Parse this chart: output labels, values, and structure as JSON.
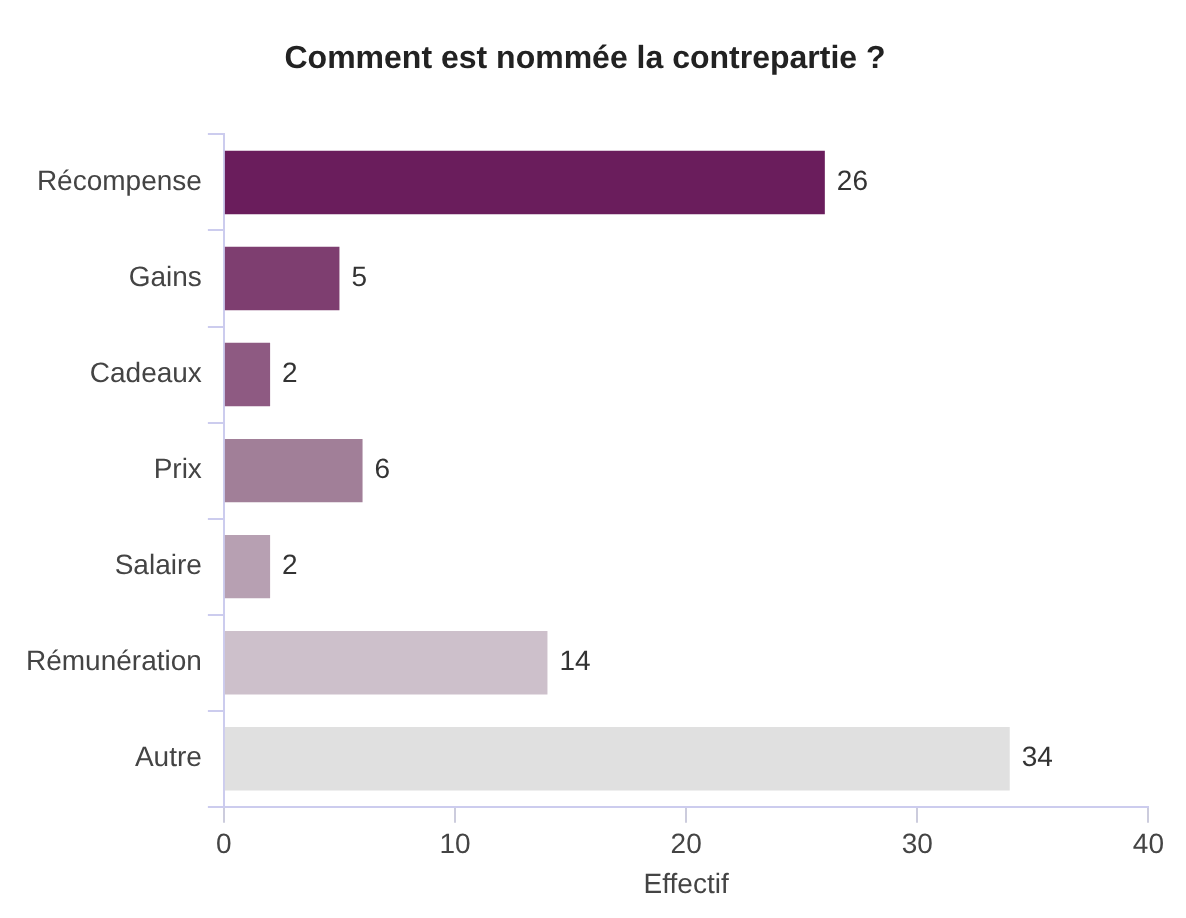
{
  "chart_data": {
    "type": "bar",
    "orientation": "horizontal",
    "title": "Comment est nommée la contrepartie ?",
    "xlabel": "Effectif",
    "categories": [
      "Récompense",
      "Gains",
      "Cadeaux",
      "Prix",
      "Salaire",
      "Rémunération",
      "Autre"
    ],
    "values": [
      26,
      5,
      2,
      6,
      2,
      14,
      34
    ],
    "colors": [
      "#6a1d5c",
      "#7e3e70",
      "#8e5a82",
      "#a17f98",
      "#b7a0b2",
      "#cdc0cb",
      "#e0e0e0"
    ],
    "xlim": [
      0,
      40
    ],
    "xticks": [
      0,
      10,
      20,
      30,
      40
    ],
    "grid": false,
    "legend": false,
    "data_labels": true
  }
}
